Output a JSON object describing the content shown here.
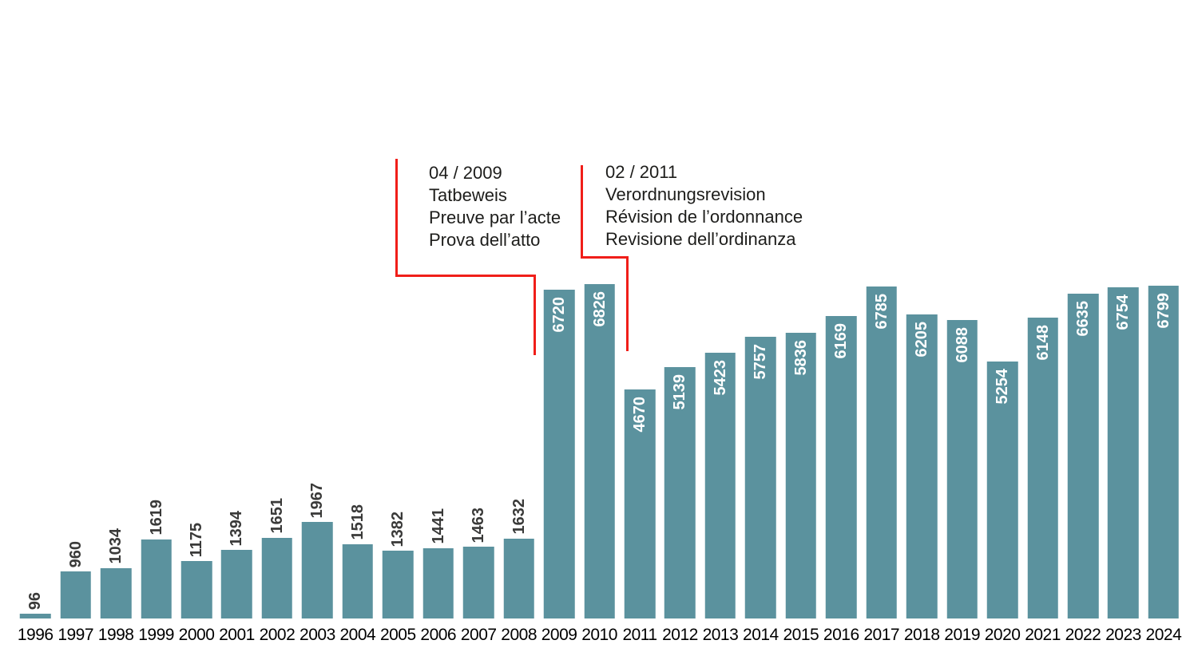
{
  "chart_data": {
    "type": "bar",
    "categories": [
      "1996",
      "1997",
      "1998",
      "1999",
      "2000",
      "2001",
      "2002",
      "2003",
      "2004",
      "2005",
      "2006",
      "2007",
      "2008",
      "2009",
      "2010",
      "2011",
      "2012",
      "2013",
      "2014",
      "2015",
      "2016",
      "2017",
      "2018",
      "2019",
      "2020",
      "2021",
      "2022",
      "2023",
      "2024"
    ],
    "values": [
      96,
      960,
      1034,
      1619,
      1175,
      1394,
      1651,
      1967,
      1518,
      1382,
      1441,
      1463,
      1632,
      6720,
      6826,
      4670,
      5139,
      5423,
      5757,
      5836,
      6169,
      6785,
      6205,
      6088,
      5254,
      6148,
      6635,
      6754,
      6799
    ],
    "title": "",
    "xlabel": "",
    "ylabel": "",
    "ylim": [
      0,
      6826
    ],
    "grid": false,
    "legend": false,
    "bar_label_position_rule": "labels rotated 90deg; above bar for small values, inside top of bar for values >= 4000"
  },
  "annotations": [
    {
      "lines": [
        "04 / 2009",
        "Tatbeweis",
        "Preuve par l’acte",
        "Prova dell’atto"
      ]
    },
    {
      "lines": [
        "02 / 2011",
        "Verordnungsrevision",
        "Révision de l’ordonnance",
        "Revisione dell’ordinanza"
      ]
    }
  ],
  "colors": {
    "bar": "#5b929e",
    "label_outside": "#3a3a39",
    "label_inside": "#ffffff",
    "axis_text": "#000000",
    "annotation_text": "#1d1d1b",
    "annotation_line": "#f01e19",
    "background": "#ffffff"
  }
}
